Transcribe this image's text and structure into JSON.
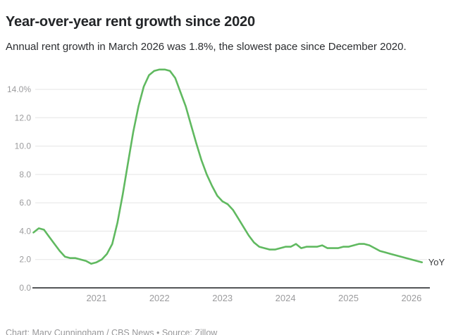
{
  "header": {
    "title": "Year-over-year rent growth since 2020",
    "subtitle": "Annual rent growth in March 2026 was 1.8%, the slowest pace since December 2020."
  },
  "footer": {
    "credit": "Chart: Mary Cunningham / CBS News • Source: Zillow"
  },
  "colors": {
    "line": "#60b960",
    "grid": "#e5e5e5",
    "baseline": "#3c3e40",
    "axis_label": "#9b9b9d",
    "series_label": "#3a3c3e",
    "title": "#232528",
    "subtitle": "#2b2d30",
    "credit": "#979799"
  },
  "chart_data": {
    "type": "line",
    "title": "Year-over-year rent growth since 2020",
    "subtitle": "Annual rent growth in March 2026 was 1.8%, the slowest pace since December 2020.",
    "source": "Chart: Mary Cunningham / CBS News • Source: Zillow",
    "unit": "%",
    "grid": "horizontal",
    "legend_position": "end-of-line",
    "series_label": "YoY",
    "x_frequency": "monthly",
    "x_start": "2020-01",
    "x_end": "2026-03",
    "x_tick_labels": [
      "2021",
      "2022",
      "2023",
      "2024",
      "2025",
      "2026"
    ],
    "y_ticks": [
      0,
      2,
      4,
      6,
      8,
      10,
      12,
      14
    ],
    "y_tick_labels": [
      "0.0",
      "2.0",
      "4.0",
      "6.0",
      "8.0",
      "10.0",
      "12.0",
      "14.0%"
    ],
    "ylim": [
      0,
      15.8
    ],
    "values": [
      3.9,
      4.2,
      4.1,
      3.6,
      3.1,
      2.6,
      2.2,
      2.1,
      2.1,
      2.0,
      1.9,
      1.7,
      1.8,
      2.0,
      2.4,
      3.1,
      4.6,
      6.6,
      8.8,
      11.0,
      12.8,
      14.2,
      15.0,
      15.3,
      15.4,
      15.4,
      15.3,
      14.8,
      13.8,
      12.8,
      11.5,
      10.2,
      9.0,
      8.0,
      7.2,
      6.5,
      6.1,
      5.9,
      5.5,
      4.9,
      4.3,
      3.7,
      3.2,
      2.9,
      2.8,
      2.7,
      2.7,
      2.8,
      2.9,
      2.9,
      3.1,
      2.8,
      2.9,
      2.9,
      2.9,
      3.0,
      2.8,
      2.8,
      2.8,
      2.9,
      2.9,
      3.0,
      3.1,
      3.1,
      3.0,
      2.8,
      2.6,
      2.5,
      2.4,
      2.3,
      2.2,
      2.1,
      2.0,
      1.9,
      1.8
    ]
  }
}
